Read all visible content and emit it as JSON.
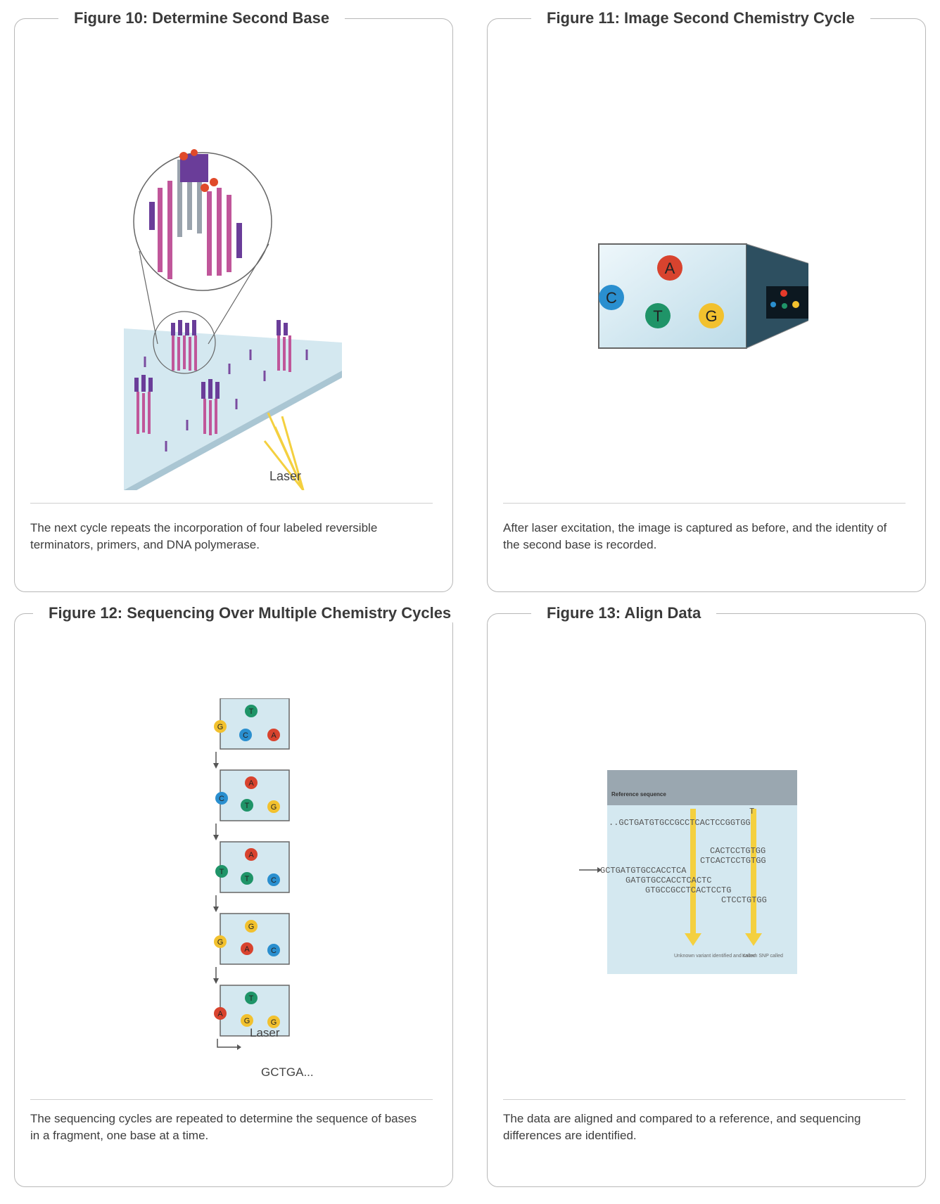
{
  "figures": [
    {
      "title": "Figure 10: Determine Second Base",
      "caption": "The next cycle repeats the incorporation of four labeled reversible terminators, primers, and DNA polymerase.",
      "laser_label": "Laser"
    },
    {
      "title": "Figure 11: Image Second Chemistry Cycle",
      "caption": "After laser excitation, the image is captured as before, and the identity of the second base is recorded.",
      "bases": [
        "A",
        "C",
        "T",
        "G"
      ]
    },
    {
      "title": "Figure 12: Sequencing Over Multiple Chemistry Cycles",
      "caption": "The sequencing cycles are repeated to determine the sequence of bases in a fragment, one base at a time.",
      "laser_label": "Laser",
      "sequence_label": "GCTGA...",
      "cycles": [
        [
          "T",
          "G",
          "C",
          "A"
        ],
        [
          "A",
          "C",
          "T",
          "G"
        ],
        [
          "A",
          "T",
          "T",
          "C"
        ],
        [
          "G",
          "G",
          "A",
          "C"
        ],
        [
          "T",
          "A",
          "G",
          "G"
        ]
      ]
    },
    {
      "title": "Figure 13: Align Data",
      "caption": "The data are aligned and compared to a reference, and sequencing differences are identified.",
      "reference_header": "Reference sequence",
      "reference_seq": "..GCTGATGTGCCGCCTCACTCCGGTGG",
      "snp_base": "T",
      "reads": [
        "CACTCCTGTGG",
        "CTCACTCCTGTGG",
        "GCTGATGTGCCACCTCA",
        "GATGTGCCACCTCACTC",
        "GTGCCGCCTCACTCCTG",
        "CTCCTGTGG"
      ],
      "note_left": "Unknown variant identified and called",
      "note_right": "Known SNP called"
    }
  ],
  "colors": {
    "A": "#d8432e",
    "C": "#2a8fcf",
    "T": "#1f9468",
    "G": "#f2c12e",
    "surface": "#d4e8f0",
    "laser": "#f4d03f",
    "border": "#b8b8b8"
  }
}
